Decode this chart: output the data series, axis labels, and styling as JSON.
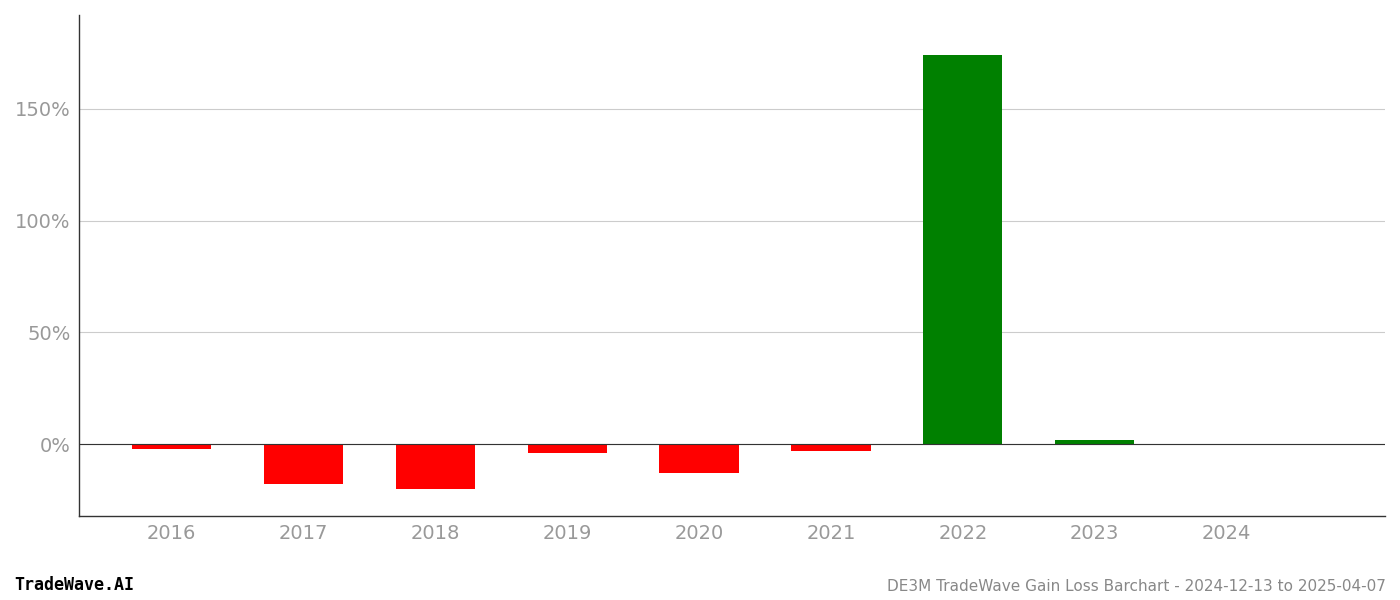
{
  "years": [
    2016,
    2017,
    2018,
    2019,
    2020,
    2021,
    2022,
    2023,
    2024
  ],
  "values": [
    -0.02,
    -0.18,
    -0.2,
    -0.04,
    -0.13,
    -0.03,
    1.74,
    0.02,
    0.0
  ],
  "colors": [
    "#ff0000",
    "#ff0000",
    "#ff0000",
    "#ff0000",
    "#ff0000",
    "#ff0000",
    "#008000",
    "#008000",
    "#ffffff"
  ],
  "title": "DE3M TradeWave Gain Loss Barchart - 2024-12-13 to 2025-04-07",
  "watermark": "TradeWave.AI",
  "xlim": [
    2015.3,
    2025.2
  ],
  "ylim": [
    -0.32,
    1.92
  ],
  "yticks": [
    0.0,
    0.5,
    1.0,
    1.5
  ],
  "ytick_labels": [
    "0%",
    "50%",
    "100%",
    "150%"
  ],
  "bar_width": 0.6,
  "background_color": "#ffffff",
  "grid_color": "#cccccc",
  "axis_label_color": "#999999",
  "title_color": "#888888",
  "watermark_color": "#000000",
  "spine_color": "#333333"
}
